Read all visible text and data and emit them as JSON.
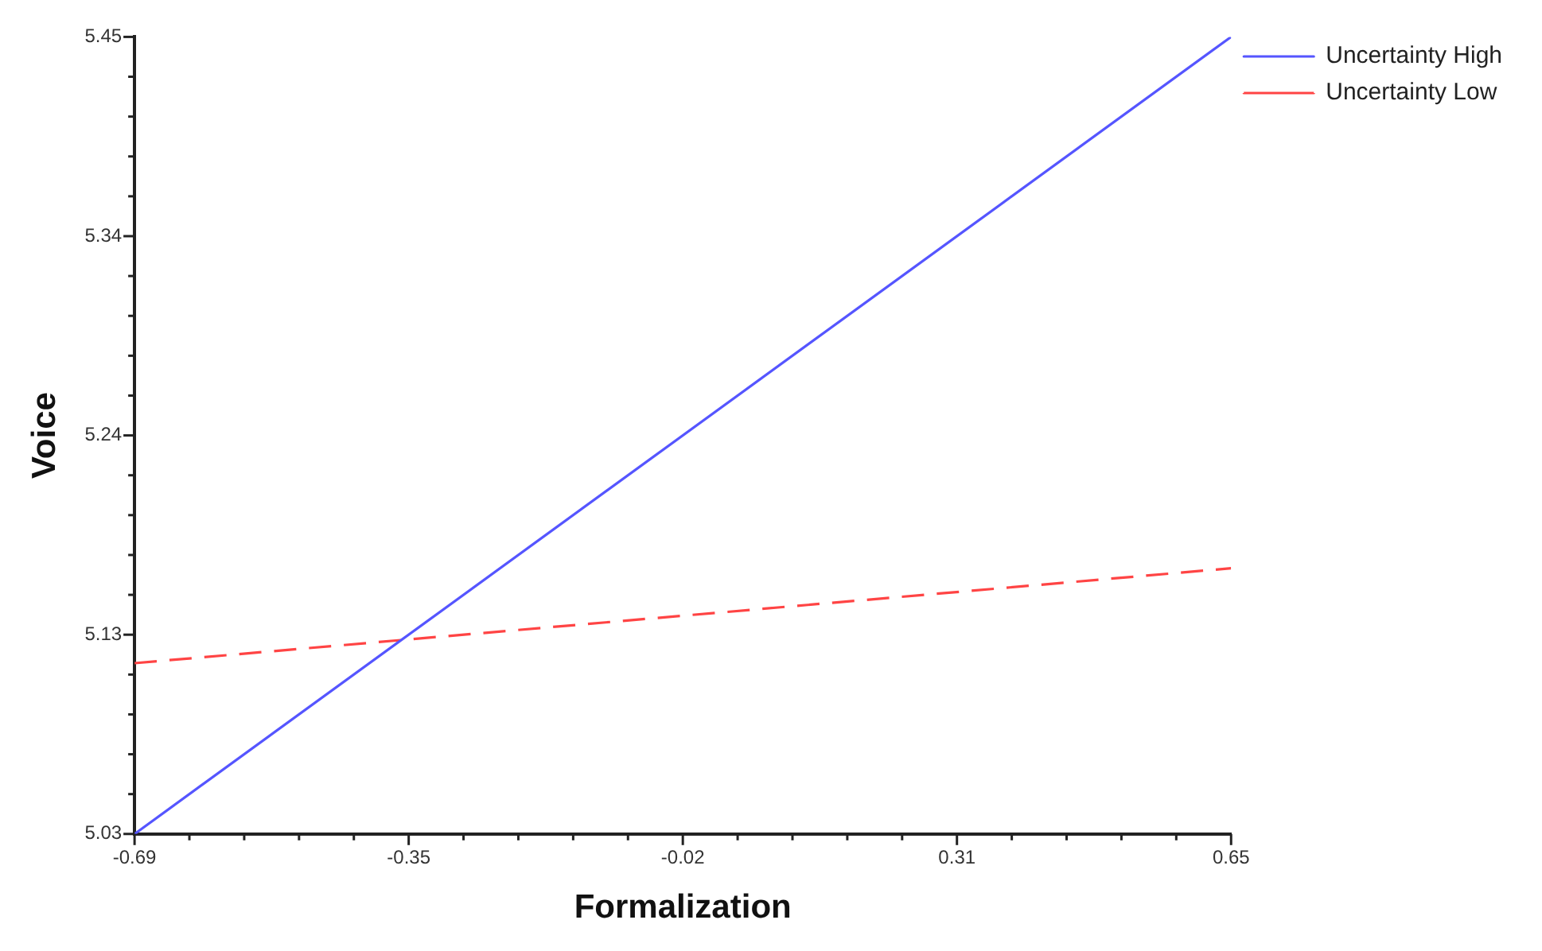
{
  "chart_data": {
    "type": "line",
    "xlabel": "Formalization",
    "ylabel": "Voice",
    "x": [
      -0.69,
      0.65
    ],
    "series": [
      {
        "name": "Uncertainty High",
        "color": "#5555ff",
        "values": [
          5.03,
          5.45
        ],
        "line_style": "solid"
      },
      {
        "name": "Uncertainty Low",
        "color": "#ff4444",
        "values": [
          5.12,
          5.17
        ],
        "line_style": "dashed"
      }
    ],
    "xlim": [
      -0.69,
      0.65
    ],
    "xticks": [
      -0.69,
      {
        "value": -0.623,
        "label": null
      },
      {
        "value": -0.556,
        "label": null
      },
      {
        "value": -0.489,
        "label": null
      },
      {
        "value": -0.422,
        "label": null
      },
      {
        "value": -0.355,
        "label": "-0.35"
      },
      {
        "value": -0.288,
        "label": null
      },
      {
        "value": -0.221,
        "label": null
      },
      {
        "value": -0.154,
        "label": null
      },
      {
        "value": -0.087,
        "label": null
      },
      -0.02,
      {
        "value": 0.047,
        "label": null
      },
      {
        "value": 0.114,
        "label": null
      },
      {
        "value": 0.181,
        "label": null
      },
      {
        "value": 0.248,
        "label": null
      },
      {
        "value": 0.315,
        "label": "0.31"
      },
      {
        "value": 0.382,
        "label": null
      },
      {
        "value": 0.449,
        "label": null
      },
      {
        "value": 0.516,
        "label": null
      },
      {
        "value": 0.583,
        "label": null
      },
      0.65
    ],
    "ylim": [
      5.03,
      5.45
    ],
    "yticks": [
      5.03,
      {
        "value": 5.051,
        "label": null
      },
      {
        "value": 5.072,
        "label": null
      },
      {
        "value": 5.093,
        "label": null
      },
      {
        "value": 5.114,
        "label": null
      },
      {
        "value": 5.135,
        "label": "5.13"
      },
      {
        "value": 5.156,
        "label": null
      },
      {
        "value": 5.177,
        "label": null
      },
      {
        "value": 5.198,
        "label": null
      },
      {
        "value": 5.219,
        "label": null
      },
      5.24,
      {
        "value": 5.261,
        "label": null
      },
      {
        "value": 5.282,
        "label": null
      },
      {
        "value": 5.303,
        "label": null
      },
      {
        "value": 5.324,
        "label": null
      },
      {
        "value": 5.345,
        "label": "5.34"
      },
      {
        "value": 5.366,
        "label": null
      },
      {
        "value": 5.387,
        "label": null
      },
      {
        "value": 5.408,
        "label": null
      },
      {
        "value": 5.429,
        "label": null
      },
      5.45
    ],
    "grid": false,
    "legend": "top right",
    "marker": "none"
  }
}
